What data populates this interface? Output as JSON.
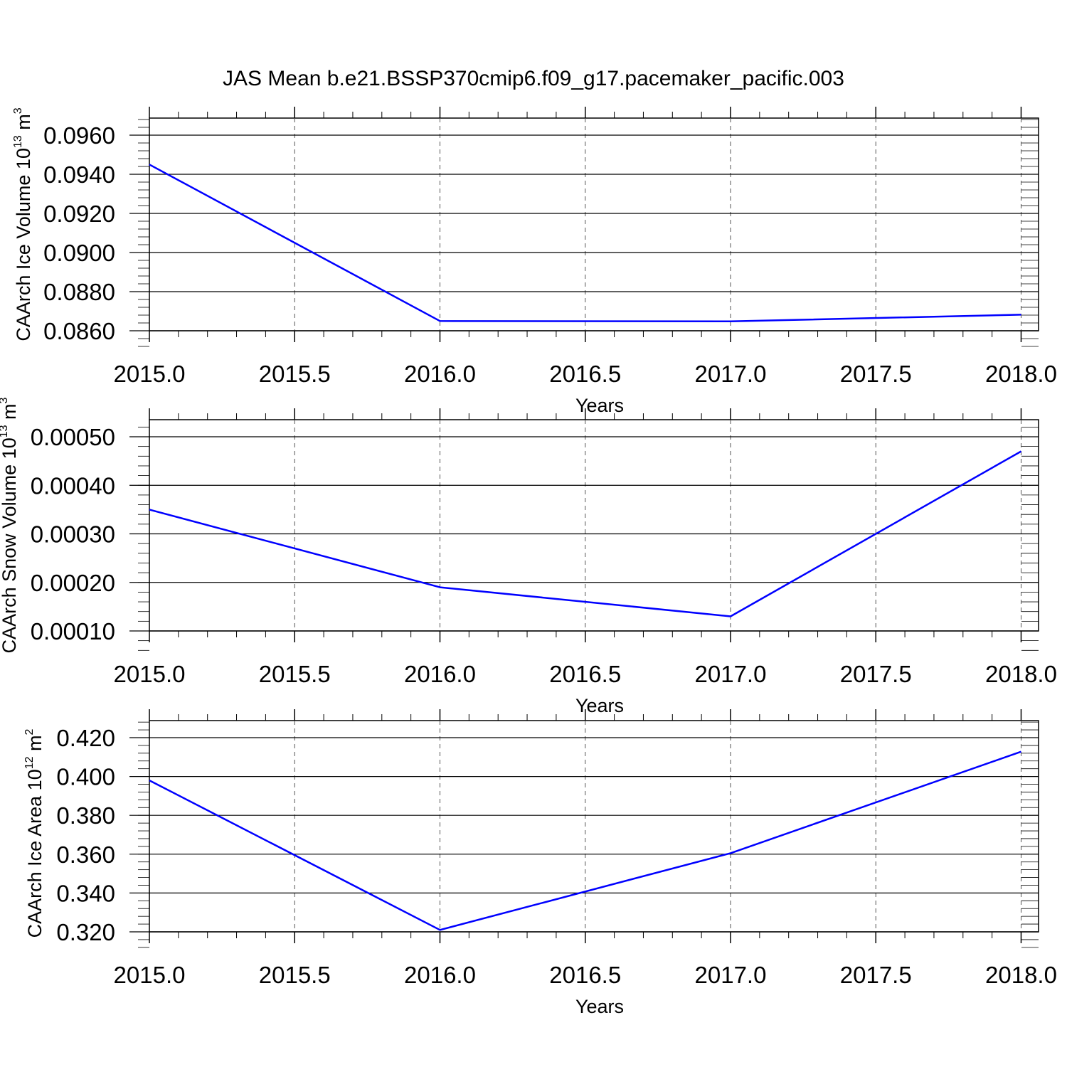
{
  "title": "JAS Mean b.e21.BSSP370cmip6.f09_g17.pacemaker_pacific.003",
  "chart_data": [
    {
      "type": "line",
      "xlabel": "Years",
      "ylabel": {
        "text": "CAArch Ice Volume 10",
        "exp": "13",
        "unit": " m",
        "unit_exp": "3"
      },
      "x": [
        2015,
        2016,
        2017,
        2018
      ],
      "series": [
        {
          "values": [
            0.0945,
            0.0865,
            0.08648,
            0.08682
          ],
          "color": "#0000ff"
        }
      ],
      "xlim": [
        2015,
        2018.06
      ],
      "ylim": [
        0.086,
        0.096
      ],
      "xticks": [
        "2015.0",
        "2015.5",
        "2016.0",
        "2016.5",
        "2017.0",
        "2017.5",
        "2018.0"
      ],
      "yticks": [
        "0.0860",
        "0.0880",
        "0.0900",
        "0.0920",
        "0.0940",
        "0.0960"
      ],
      "ytick_values": [
        0.086,
        0.088,
        0.09,
        0.092,
        0.094,
        0.096
      ],
      "grid": "vertical-dashed"
    },
    {
      "type": "line",
      "xlabel": "Years",
      "ylabel": {
        "text": "CAArch Snow Volume 10",
        "exp": "13",
        "unit": " m",
        "unit_exp": "3"
      },
      "x": [
        2015,
        2016,
        2017,
        2018
      ],
      "series": [
        {
          "values": [
            0.00035,
            0.00019,
            0.00013,
            0.00047
          ],
          "color": "#0000ff"
        }
      ],
      "xlim": [
        2015,
        2018.06
      ],
      "ylim": [
        0.0001,
        0.0005
      ],
      "xticks": [
        "2015.0",
        "2015.5",
        "2016.0",
        "2016.5",
        "2017.0",
        "2017.5",
        "2018.0"
      ],
      "yticks": [
        "0.00010",
        "0.00020",
        "0.00030",
        "0.00040",
        "0.00050"
      ],
      "ytick_values": [
        0.0001,
        0.0002,
        0.0003,
        0.0004,
        0.0005
      ],
      "grid": "vertical-dashed"
    },
    {
      "type": "line",
      "xlabel": "Years",
      "ylabel": {
        "text": "CAArch Ice Area 10",
        "exp": "12",
        "unit": " m",
        "unit_exp": "2"
      },
      "x": [
        2015,
        2016,
        2017,
        2018
      ],
      "series": [
        {
          "values": [
            0.398,
            0.321,
            0.3605,
            0.4128
          ],
          "color": "#0000ff"
        }
      ],
      "xlim": [
        2015,
        2018.06
      ],
      "ylim": [
        0.32,
        0.42
      ],
      "xticks": [
        "2015.0",
        "2015.5",
        "2016.0",
        "2016.5",
        "2017.0",
        "2017.5",
        "2018.0"
      ],
      "yticks": [
        "0.320",
        "0.340",
        "0.360",
        "0.380",
        "0.400",
        "0.420"
      ],
      "ytick_values": [
        0.32,
        0.34,
        0.36,
        0.38,
        0.4,
        0.42
      ],
      "grid": "vertical-dashed"
    }
  ]
}
